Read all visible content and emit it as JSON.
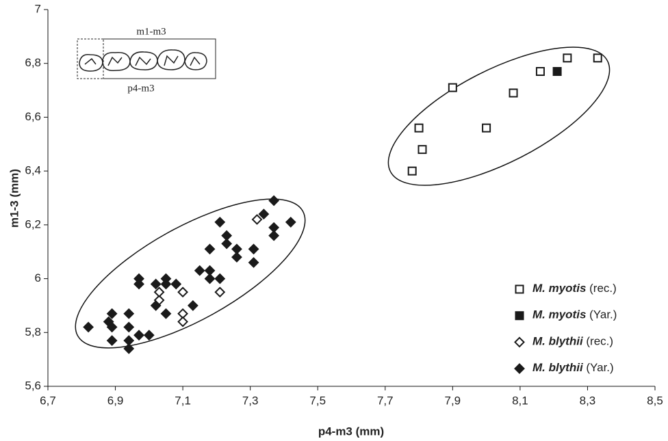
{
  "chart_data": {
    "type": "scatter",
    "x_label": "p4-m3 (mm)",
    "y_label": "m1-3 (mm)",
    "annotations": [
      "m1-m3",
      "p4-m3"
    ],
    "xlim": [
      6.7,
      8.5
    ],
    "xticks": [
      {
        "value": 6.7,
        "label": "6,7"
      },
      {
        "value": 6.9,
        "label": "6,9"
      },
      {
        "value": 7.1,
        "label": "7,1"
      },
      {
        "value": 7.3,
        "label": "7,3"
      },
      {
        "value": 7.5,
        "label": "7,5"
      },
      {
        "value": 7.7,
        "label": "7,7"
      },
      {
        "value": 7.9,
        "label": "7,9"
      },
      {
        "value": 8.1,
        "label": "8,1"
      },
      {
        "value": 8.3,
        "label": "8,3"
      },
      {
        "value": 8.5,
        "label": "8,5"
      }
    ],
    "ylim": [
      5.6,
      7
    ],
    "yticks": [
      {
        "value": 5.6,
        "label": "5,6"
      },
      {
        "value": 5.8,
        "label": "5,8"
      },
      6,
      {
        "value": 6.2,
        "label": "6,2"
      },
      {
        "value": 6.4,
        "label": "6,4"
      },
      {
        "value": 6.6,
        "label": "6,6"
      },
      {
        "value": 6.8,
        "label": "6,8"
      },
      7
    ],
    "legend": "lower right",
    "series": [
      {
        "name": "M. myotis (rec.)",
        "color": "#1a1a1a",
        "marker": "square",
        "filled": false,
        "x": [
          7.78,
          7.8,
          7.81,
          7.9,
          8.0,
          8.08,
          8.16,
          8.24,
          8.33
        ],
        "values": [
          6.4,
          6.56,
          6.48,
          6.71,
          6.56,
          6.69,
          6.77,
          6.82,
          6.82
        ]
      },
      {
        "name": "M. myotis (Yar.)",
        "color": "#1a1a1a",
        "marker": "square",
        "filled": true,
        "x": [
          8.21
        ],
        "values": [
          6.77
        ]
      },
      {
        "name": "M. blythii (rec.)",
        "color": "#1a1a1a",
        "marker": "diamond",
        "filled": false,
        "x": [
          7.03,
          7.03,
          7.1,
          7.1,
          7.1,
          7.21,
          7.32
        ],
        "values": [
          5.92,
          5.95,
          5.95,
          5.87,
          5.84,
          5.95,
          6.22
        ]
      },
      {
        "name": "M. blythii (Yar.)",
        "color": "#1a1a1a",
        "marker": "diamond",
        "filled": true,
        "x": [
          6.82,
          6.88,
          6.89,
          6.89,
          6.89,
          6.94,
          6.94,
          6.94,
          6.94,
          6.97,
          7.0,
          6.97,
          6.97,
          7.02,
          7.02,
          7.05,
          7.05,
          7.05,
          7.08,
          7.13,
          7.15,
          7.18,
          7.18,
          7.18,
          7.21,
          7.21,
          7.23,
          7.23,
          7.26,
          7.26,
          7.31,
          7.31,
          7.34,
          7.37,
          7.37,
          7.37,
          7.42
        ],
        "values": [
          5.82,
          5.84,
          5.87,
          5.82,
          5.77,
          5.87,
          5.82,
          5.77,
          5.74,
          5.79,
          5.79,
          6.0,
          5.98,
          5.98,
          5.9,
          6.0,
          5.98,
          5.87,
          5.98,
          5.9,
          6.03,
          6.0,
          6.03,
          6.11,
          6.0,
          6.21,
          6.16,
          6.13,
          6.11,
          6.08,
          6.11,
          6.06,
          6.24,
          6.29,
          6.19,
          6.16,
          6.21
        ]
      }
    ]
  }
}
